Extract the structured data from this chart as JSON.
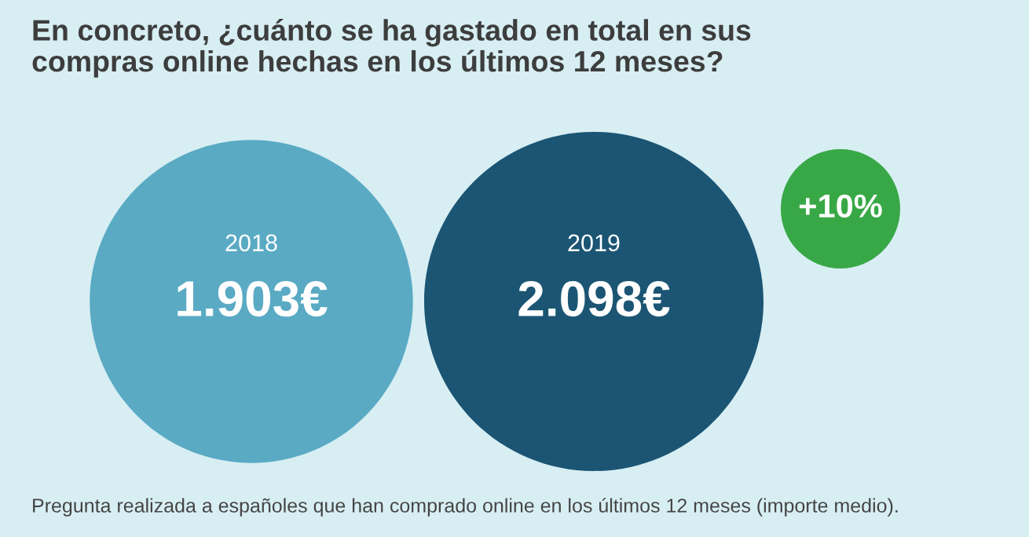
{
  "chart_data": {
    "type": "other",
    "title": "En concreto, ¿cuánto se ha gastado en total en sus\ncompras online hechas en los últimos 12 meses?",
    "categories": [
      "2018",
      "2019"
    ],
    "values": [
      1903,
      2098
    ],
    "value_labels": [
      "1.903€",
      "2.098€"
    ],
    "colors": [
      "#5aaac4",
      "#1b5573"
    ],
    "annotations": [
      "+10%",
      "Pregunta realizada a españoles que han comprado online en los últimos 12 meses (importe medio)."
    ]
  }
}
